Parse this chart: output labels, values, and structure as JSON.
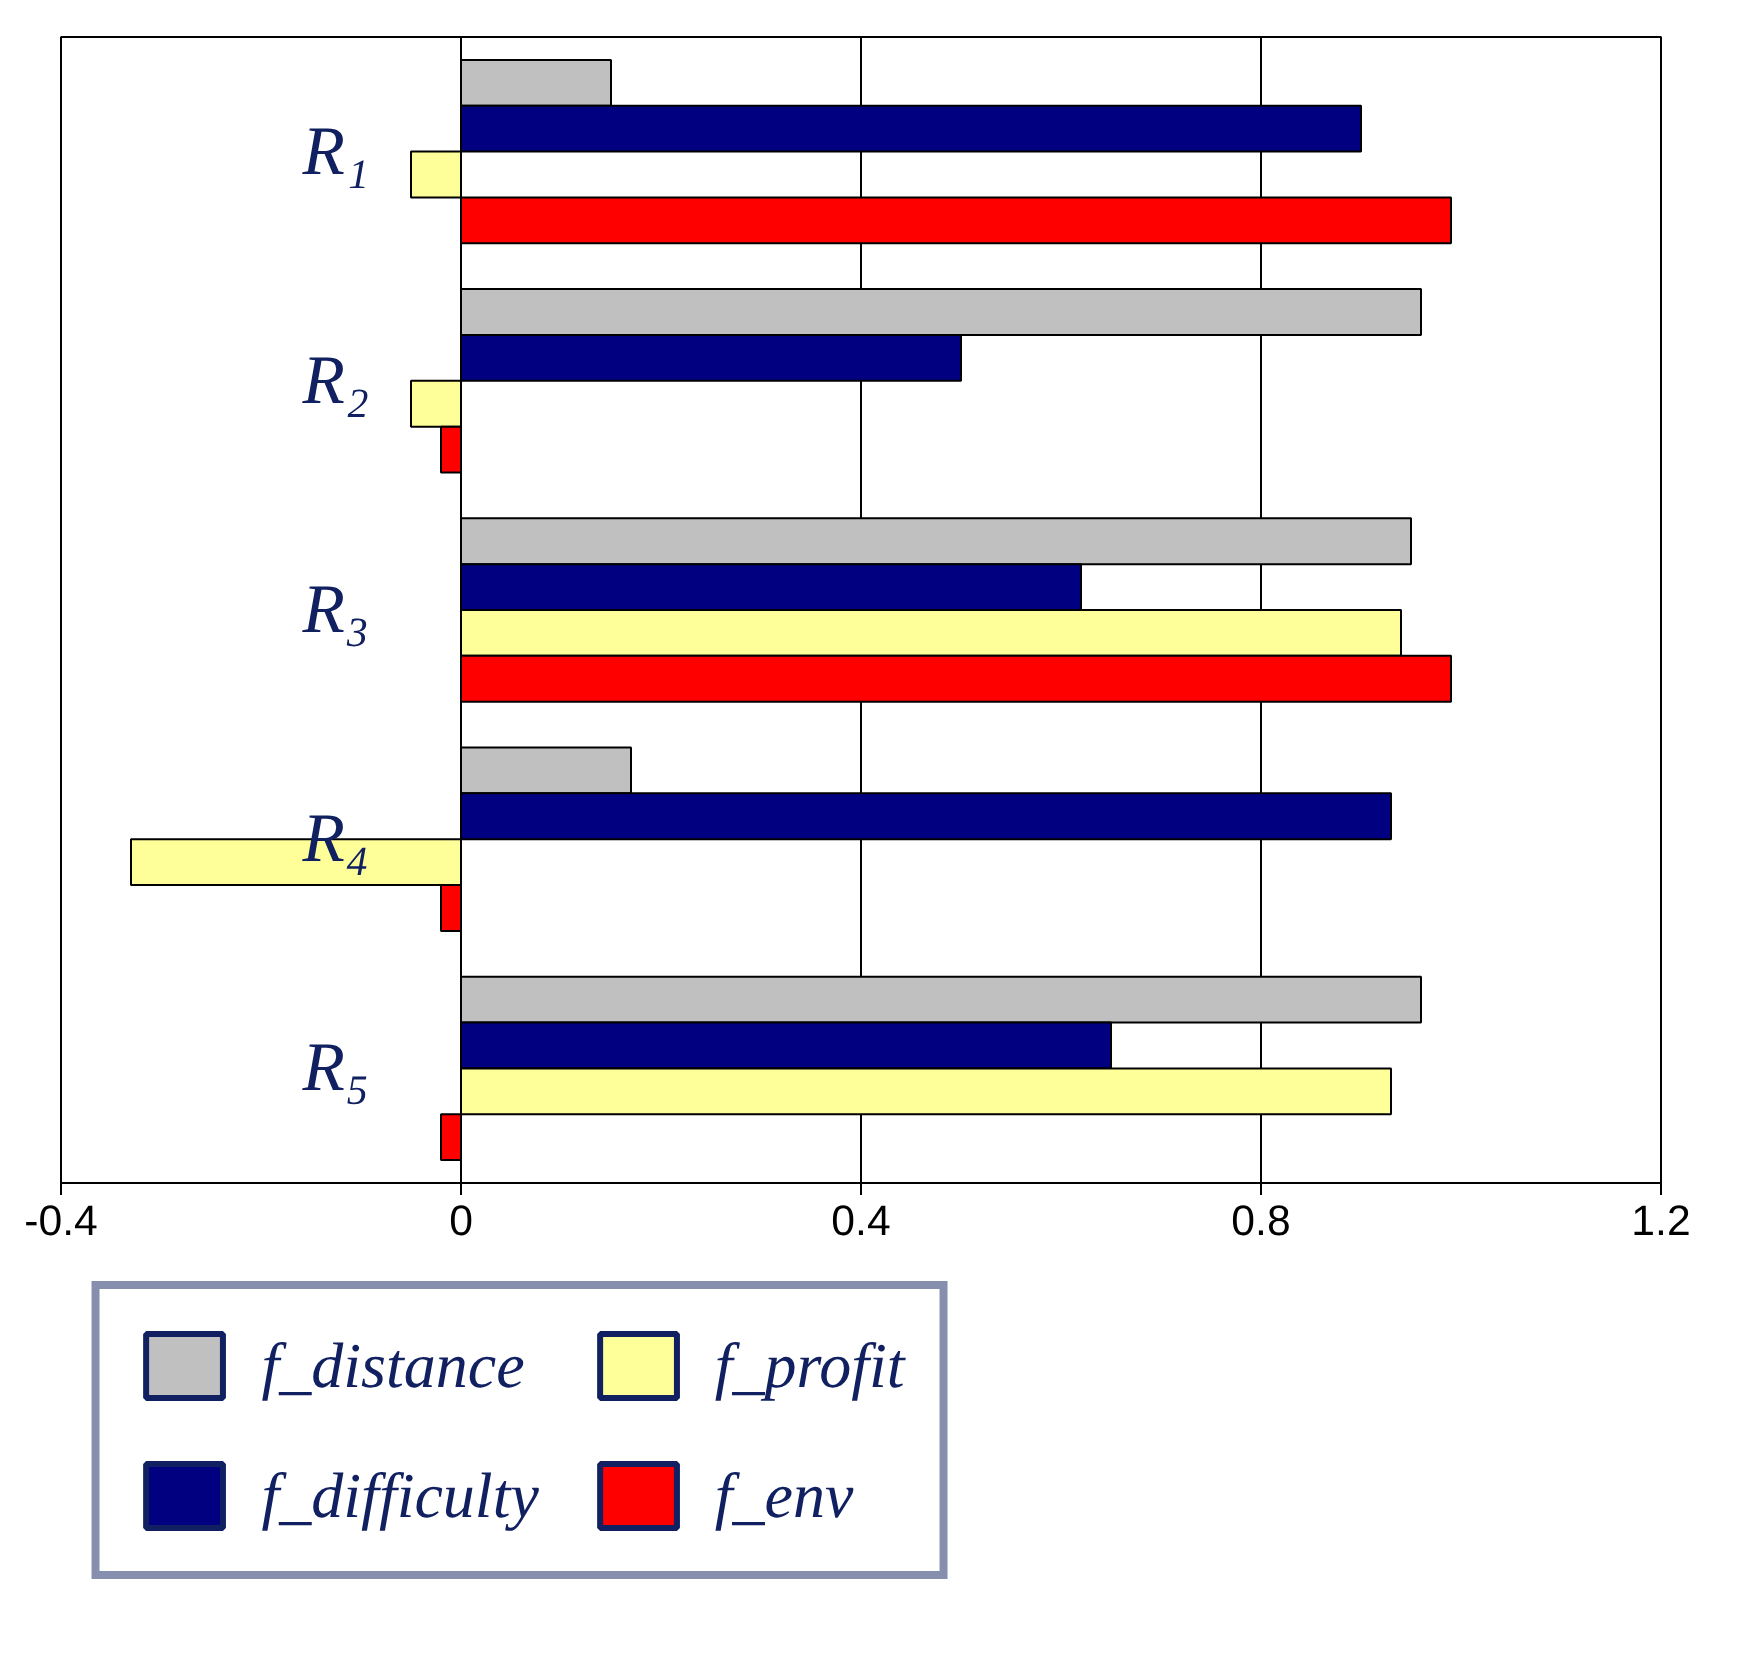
{
  "chart_data": {
    "type": "bar",
    "orientation": "horizontal",
    "categories": [
      "R₁",
      "R₂",
      "R₃",
      "R₄",
      "R₅"
    ],
    "series": [
      {
        "name": "f_distance",
        "color": "#c0c0c0",
        "values": [
          0.15,
          0.96,
          0.95,
          0.17,
          0.96
        ]
      },
      {
        "name": "f_difficulty",
        "color": "#000080",
        "values": [
          0.9,
          0.5,
          0.62,
          0.93,
          0.65
        ]
      },
      {
        "name": "f_profit",
        "color": "#ffff99",
        "values": [
          -0.05,
          -0.05,
          0.94,
          -0.33,
          0.93
        ]
      },
      {
        "name": "f_env",
        "color": "#ff0000",
        "values": [
          0.99,
          -0.02,
          0.99,
          -0.02,
          -0.02
        ]
      }
    ],
    "xlim": [
      -0.4,
      1.2
    ],
    "xticks": [
      {
        "value": -0.4,
        "label": "-0.4"
      },
      0,
      0.4,
      0.8,
      1.2
    ],
    "grid": "x",
    "legend": "bottom"
  }
}
